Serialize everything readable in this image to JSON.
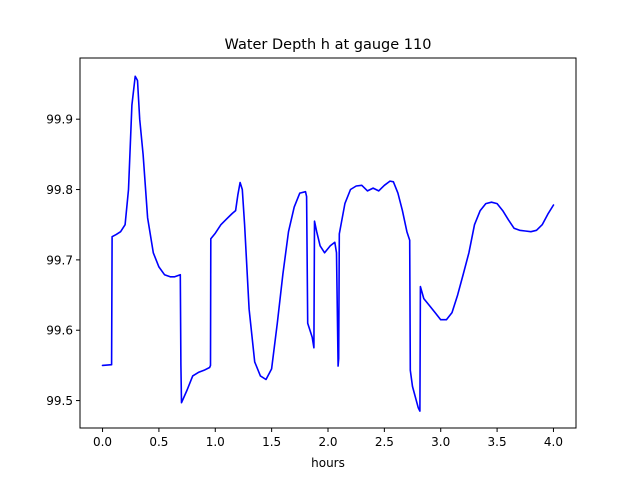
{
  "chart_data": {
    "type": "line",
    "title": "Water Depth h at gauge 110",
    "xlabel": "hours",
    "ylabel": "",
    "xlim": [
      -0.2,
      4.2
    ],
    "ylim": [
      99.461,
      99.987
    ],
    "xticks": [
      0.0,
      0.5,
      1.0,
      1.5,
      2.0,
      2.5,
      3.0,
      3.5,
      4.0
    ],
    "xtick_labels": [
      "0.0",
      "0.5",
      "1.0",
      "1.5",
      "2.0",
      "2.5",
      "3.0",
      "3.5",
      "4.0"
    ],
    "yticks": [
      99.5,
      99.6,
      99.7,
      99.8,
      99.9
    ],
    "ytick_labels": [
      "99.5",
      "99.6",
      "99.7",
      "99.8",
      "99.9"
    ],
    "grid": false,
    "series": [
      {
        "color": "#0000ff",
        "x": [
          0.0,
          0.08,
          0.085,
          0.12,
          0.16,
          0.2,
          0.23,
          0.26,
          0.29,
          0.31,
          0.33,
          0.36,
          0.4,
          0.45,
          0.5,
          0.55,
          0.6,
          0.64,
          0.69,
          0.695,
          0.7,
          0.75,
          0.8,
          0.85,
          0.9,
          0.95,
          0.958,
          0.96,
          1.0,
          1.05,
          1.1,
          1.15,
          1.18,
          1.2,
          1.22,
          1.24,
          1.26,
          1.3,
          1.35,
          1.4,
          1.45,
          1.5,
          1.55,
          1.6,
          1.65,
          1.7,
          1.75,
          1.8,
          1.81,
          1.82,
          1.86,
          1.875,
          1.88,
          1.9,
          1.93,
          1.97,
          2.02,
          2.06,
          2.075,
          2.09,
          2.095,
          2.1,
          2.15,
          2.2,
          2.25,
          2.3,
          2.35,
          2.4,
          2.45,
          2.5,
          2.55,
          2.58,
          2.62,
          2.66,
          2.7,
          2.725,
          2.73,
          2.75,
          2.8,
          2.815,
          2.82,
          2.85,
          2.9,
          2.95,
          3.0,
          3.05,
          3.1,
          3.15,
          3.2,
          3.25,
          3.3,
          3.35,
          3.4,
          3.45,
          3.5,
          3.55,
          3.6,
          3.65,
          3.7,
          3.75,
          3.8,
          3.85,
          3.9,
          3.95,
          4.0
        ],
        "y": [
          99.55,
          99.551,
          99.733,
          99.736,
          99.74,
          99.75,
          99.8,
          99.92,
          99.961,
          99.955,
          99.9,
          99.85,
          99.76,
          99.71,
          99.69,
          99.679,
          99.676,
          99.676,
          99.679,
          99.55,
          99.497,
          99.515,
          99.535,
          99.54,
          99.543,
          99.547,
          99.55,
          99.73,
          99.738,
          99.75,
          99.758,
          99.766,
          99.77,
          99.792,
          99.81,
          99.8,
          99.75,
          99.63,
          99.555,
          99.535,
          99.53,
          99.545,
          99.61,
          99.68,
          99.74,
          99.775,
          99.795,
          99.797,
          99.79,
          99.61,
          99.59,
          99.575,
          99.755,
          99.74,
          99.72,
          99.71,
          99.72,
          99.725,
          99.71,
          99.549,
          99.56,
          99.737,
          99.78,
          99.8,
          99.805,
          99.806,
          99.798,
          99.802,
          99.798,
          99.806,
          99.812,
          99.811,
          99.795,
          99.77,
          99.74,
          99.728,
          99.543,
          99.52,
          99.49,
          99.485,
          99.662,
          99.645,
          99.635,
          99.625,
          99.615,
          99.615,
          99.625,
          99.65,
          99.68,
          99.71,
          99.75,
          99.77,
          99.78,
          99.782,
          99.78,
          99.77,
          99.757,
          99.745,
          99.742,
          99.741,
          99.74,
          99.742,
          99.75,
          99.765,
          99.778
        ]
      }
    ]
  }
}
